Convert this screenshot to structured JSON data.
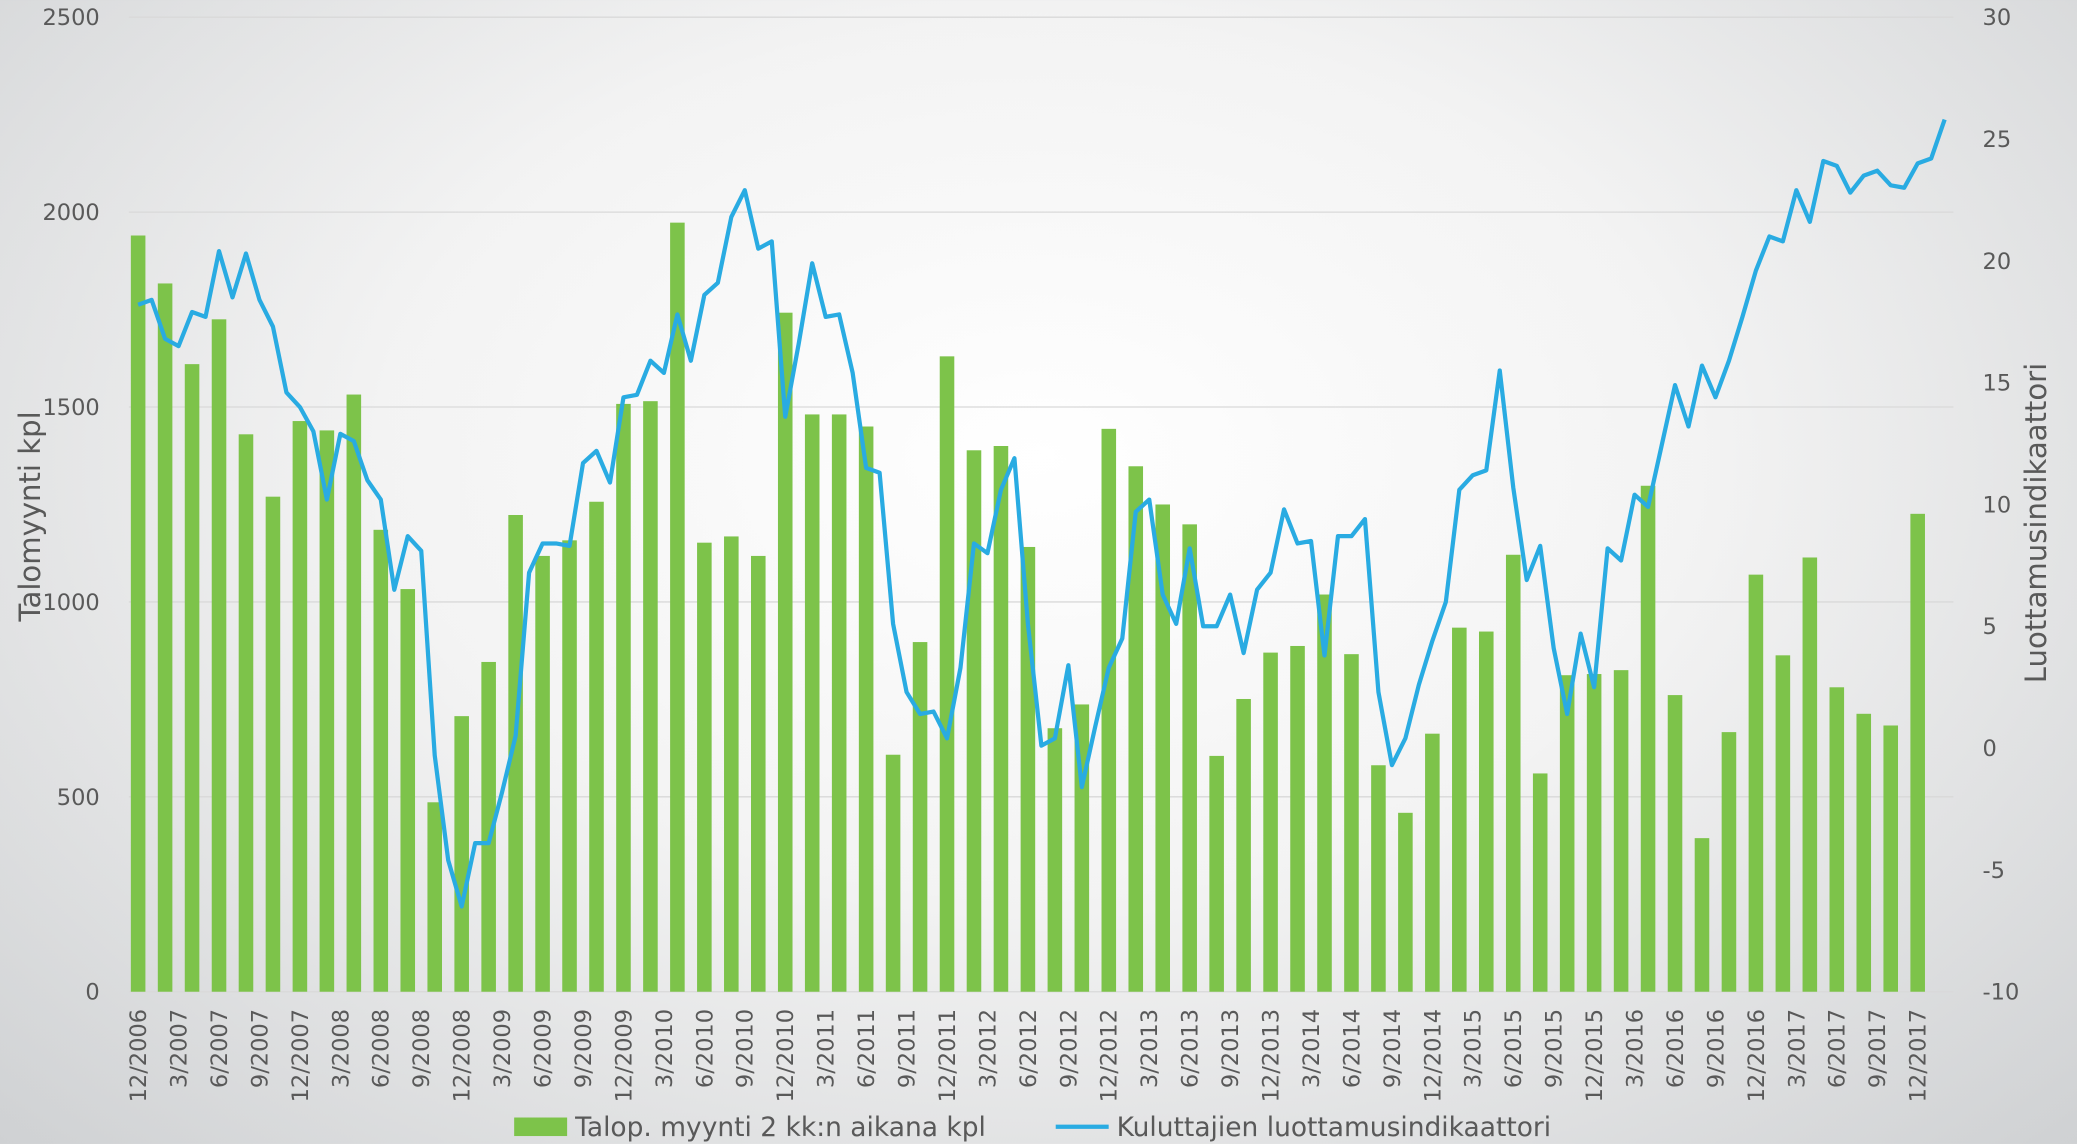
{
  "chart_data": {
    "type": "combo",
    "categories": [
      "12/2006",
      null,
      null,
      "3/2007",
      null,
      null,
      "6/2007",
      null,
      null,
      "9/2007",
      null,
      null,
      "12/2007",
      null,
      null,
      "3/2008",
      null,
      null,
      "6/2008",
      null,
      null,
      "9/2008",
      null,
      null,
      "12/2008",
      null,
      null,
      "3/2009",
      null,
      null,
      "6/2009",
      null,
      null,
      "9/2009",
      null,
      null,
      "12/2009",
      null,
      null,
      "3/2010",
      null,
      null,
      "6/2010",
      null,
      null,
      "9/2010",
      null,
      null,
      "12/2010",
      null,
      null,
      "3/2011",
      null,
      null,
      "6/2011",
      null,
      null,
      "9/2011",
      null,
      null,
      "12/2011",
      null,
      null,
      "3/2012",
      null,
      null,
      "6/2012",
      null,
      null,
      "9/2012",
      null,
      null,
      "12/2012",
      null,
      null,
      "3/2013",
      null,
      null,
      "6/2013",
      null,
      null,
      "9/2013",
      null,
      null,
      "12/2013",
      null,
      null,
      "3/2014",
      null,
      null,
      "6/2014",
      null,
      null,
      "9/2014",
      null,
      null,
      "12/2014",
      null,
      null,
      "3/2015",
      null,
      null,
      "6/2015",
      null,
      null,
      "9/2015",
      null,
      null,
      "12/2015",
      null,
      null,
      "3/2016",
      null,
      null,
      "6/2016",
      null,
      null,
      "9/2016",
      null,
      null,
      "12/2016",
      null,
      null,
      "3/2017",
      null,
      null,
      "6/2017",
      null,
      null,
      "9/2017",
      null,
      null,
      "12/2017",
      null,
      null
    ],
    "series": [
      {
        "name": "Talop. myynti 2 kk:n aikana kpl",
        "type": "bar",
        "color": "#7dc34a",
        "values": [
          1940,
          null,
          1817,
          null,
          1610,
          null,
          1725,
          null,
          1430,
          null,
          1270,
          null,
          1464,
          null,
          1440,
          null,
          1532,
          null,
          1185,
          null,
          1033,
          null,
          486,
          null,
          707,
          null,
          846,
          null,
          1223,
          null,
          1118,
          null,
          1158,
          null,
          1257,
          null,
          1508,
          null,
          1515,
          null,
          1973,
          null,
          1152,
          null,
          1168,
          null,
          1118,
          null,
          1742,
          null,
          1481,
          null,
          1481,
          null,
          1450,
          null,
          608,
          null,
          897,
          null,
          1630,
          null,
          1389,
          null,
          1400,
          null,
          1141,
          null,
          676,
          null,
          737,
          null,
          1444,
          null,
          1348,
          null,
          1250,
          null,
          1199,
          null,
          605,
          null,
          751,
          null,
          870,
          null,
          887,
          null,
          1019,
          null,
          866,
          null,
          581,
          null,
          459,
          null,
          662,
          null,
          934,
          null,
          924,
          null,
          1121,
          null,
          560,
          null,
          812,
          null,
          815,
          null,
          825,
          null,
          1298,
          null,
          761,
          null,
          394,
          null,
          666,
          null,
          1070,
          null,
          863,
          null,
          1114,
          null,
          781,
          null,
          713,
          null,
          683,
          null,
          1226,
          null,
          null
        ]
      },
      {
        "name": "Kuluttajien luottamusindikaattori",
        "type": "line",
        "axis": "y2",
        "color": "#29abe2",
        "values": [
          18.2,
          18.4,
          16.8,
          16.5,
          17.9,
          17.7,
          20.4,
          18.5,
          20.3,
          18.4,
          17.3,
          14.6,
          14.0,
          13.0,
          10.2,
          12.9,
          12.6,
          11.0,
          10.2,
          6.5,
          8.7,
          8.1,
          -0.3,
          -4.6,
          -6.5,
          -3.9,
          -3.9,
          -1.8,
          0.5,
          7.2,
          8.4,
          8.4,
          8.3,
          11.7,
          12.2,
          10.9,
          14.4,
          14.5,
          15.9,
          15.4,
          17.8,
          15.9,
          18.6,
          19.1,
          21.8,
          22.9,
          20.5,
          20.8,
          13.6,
          16.6,
          19.9,
          17.7,
          17.8,
          15.4,
          11.5,
          11.3,
          5.1,
          2.3,
          1.4,
          1.5,
          0.4,
          3.3,
          8.4,
          8.0,
          10.6,
          11.9,
          5.1,
          0.1,
          0.4,
          3.4,
          -1.6,
          0.9,
          3.3,
          4.5,
          9.7,
          10.2,
          6.3,
          5.1,
          8.2,
          5.0,
          5.0,
          6.3,
          3.9,
          6.5,
          7.2,
          9.8,
          8.4,
          8.5,
          3.8,
          8.7,
          8.7,
          9.4,
          2.3,
          -0.7,
          0.4,
          2.6,
          4.4,
          6.0,
          10.6,
          11.2,
          11.4,
          15.5,
          10.7,
          6.9,
          8.3,
          4.1,
          1.4,
          4.7,
          2.5,
          8.2,
          7.7,
          10.4,
          9.9,
          12.4,
          14.9,
          13.2,
          15.7,
          14.4,
          15.9,
          17.7,
          19.6,
          21.0,
          20.8,
          22.9,
          21.6,
          24.1,
          23.9,
          22.8,
          23.5,
          23.7,
          23.1,
          23.0,
          24.0,
          24.2,
          25.8
        ]
      }
    ],
    "ylabel": "Talomyynti kpl",
    "y2label": "Luottamusindikaattori",
    "ylim": [
      0,
      2500
    ],
    "yticks": [
      0,
      500,
      1000,
      1500,
      2000,
      2500
    ],
    "y2lim": [
      -10,
      30
    ],
    "y2ticks": [
      -10,
      -5,
      0,
      5,
      10,
      15,
      20,
      25,
      30
    ],
    "grid": true,
    "legend": "bottom"
  }
}
